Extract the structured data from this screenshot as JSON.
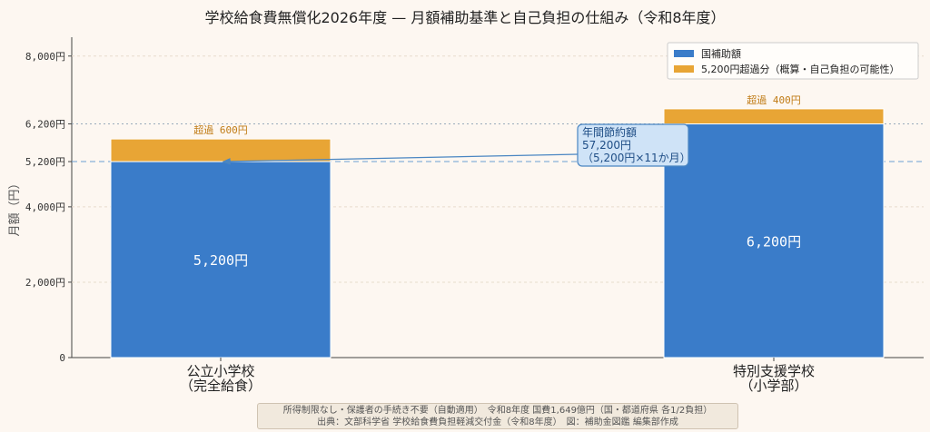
{
  "title": "学校給食費無償化2026年度 — 月額補助基準と自己負担の仕組み（令和8年度）",
  "chart_data": {
    "type": "bar",
    "stacked": true,
    "categories": [
      "公立小学校\n（完全給食）",
      "特別支援学校\n（小学部）"
    ],
    "series": [
      {
        "name": "国補助額",
        "color": "#3a7cc9",
        "values": [
          5200,
          6200
        ],
        "labels": [
          "5,200円",
          "6,200円"
        ]
      },
      {
        "name": "5,200円超過分（概算・自己負担の可能性）",
        "color": "#e8a535",
        "values": [
          600,
          400
        ],
        "labels": [
          "超過 600円",
          "超過 400円"
        ]
      }
    ],
    "ylabel": "月額（円）",
    "ylim": [
      0,
      8500
    ],
    "yticks": [
      0,
      2000,
      4000,
      5200,
      6200,
      8000
    ],
    "ytick_labels": [
      "0",
      "2,000円",
      "4,000円",
      "5,200円",
      "6,200円",
      "8,000円"
    ],
    "reference_lines": [
      {
        "value": 5200,
        "style": "dashed",
        "color": "#6a9fd4"
      },
      {
        "value": 6200,
        "style": "dotted",
        "color": "#9ab"
      }
    ],
    "annotation": {
      "lines": [
        "年間節約額",
        "57,200円",
        "（5,200円×11か月）"
      ],
      "points_to_category": 0,
      "points_to_value": 5200
    },
    "legend_position": "top-right",
    "grid": "horizontal-dashed"
  },
  "footer": {
    "line1": "所得制限なし・保護者の手続き不要（自動適用）　令和8年度 国費1,649億円（国・都道府県 各1/2負担）",
    "line2": "出典：文部科学省 学校給食費負担軽減交付金（令和8年度）　図：補助金図鑑 編集部作成"
  }
}
